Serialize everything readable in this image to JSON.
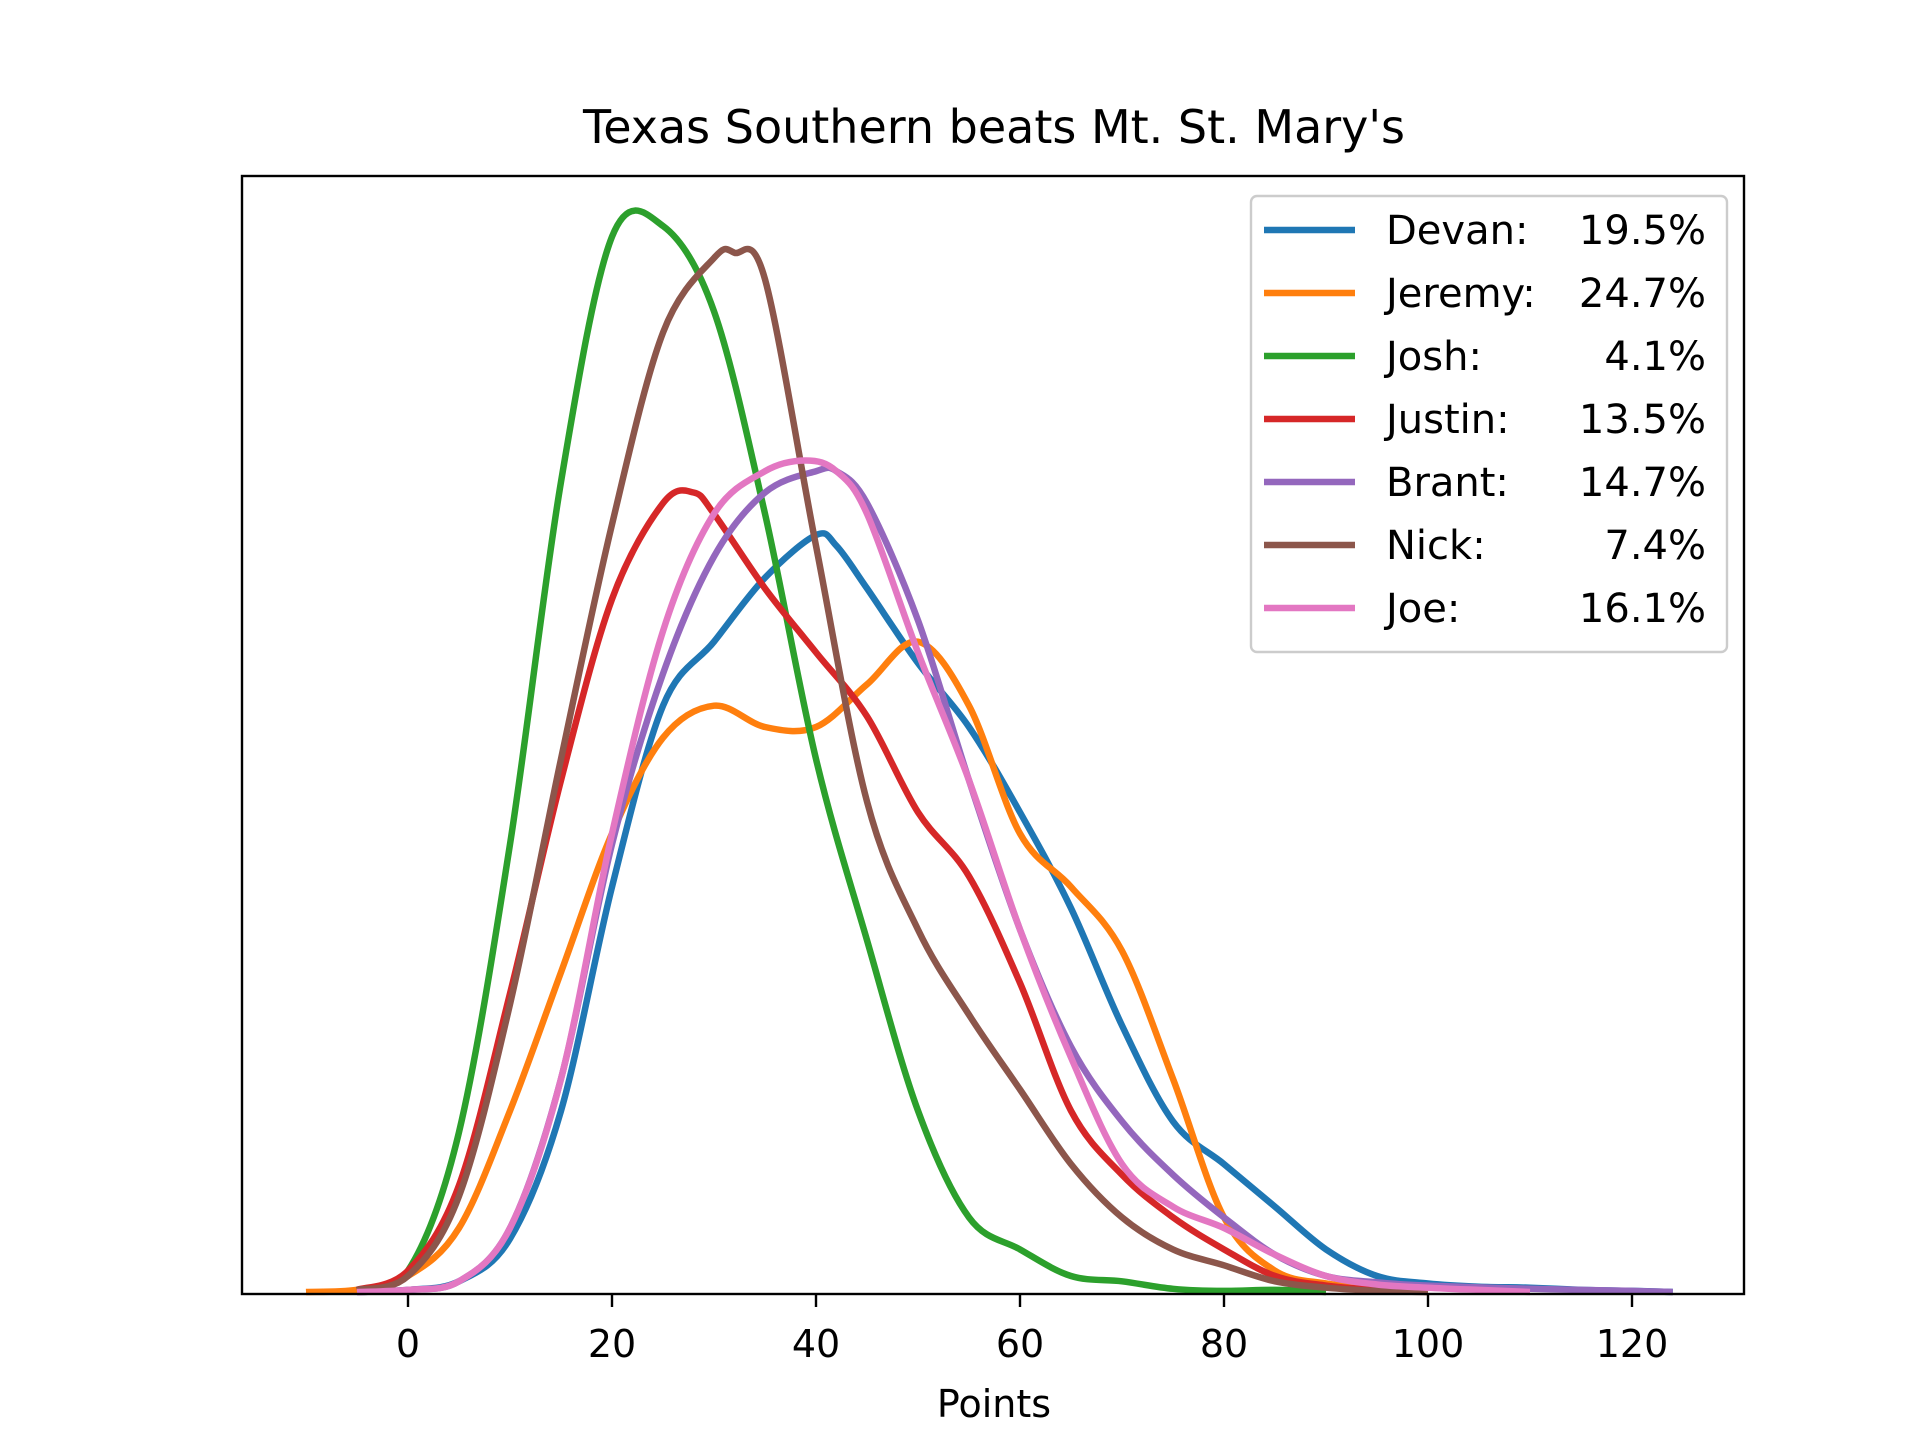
{
  "chart_data": {
    "type": "line",
    "title": "Texas Southern beats Mt. St. Mary's",
    "xlabel": "Points",
    "ylabel": "",
    "xlim": [
      -16.5,
      131
    ],
    "x_ticks": [
      0,
      20,
      40,
      60,
      80,
      100,
      120
    ],
    "y_ticks_shown": false,
    "grid": false,
    "legend_position": "top-right",
    "y_scale": "density (unlabeled, relative)",
    "series": [
      {
        "name": "Devan:",
        "pct": "19.5%",
        "color": "#1f77b4",
        "x": [
          -5,
          0,
          5,
          10,
          15,
          20,
          25,
          30,
          35,
          40,
          42,
          45,
          50,
          55,
          60,
          65,
          70,
          75,
          80,
          85,
          90,
          95,
          100,
          105,
          110,
          115,
          120,
          124
        ],
        "y": [
          0,
          0.002,
          0.01,
          0.05,
          0.17,
          0.38,
          0.55,
          0.61,
          0.67,
          0.71,
          0.7,
          0.66,
          0.59,
          0.53,
          0.45,
          0.36,
          0.25,
          0.16,
          0.12,
          0.08,
          0.04,
          0.015,
          0.008,
          0.005,
          0.004,
          0.002,
          0.001,
          0
        ]
      },
      {
        "name": "Jeremy:",
        "pct": "24.7%",
        "color": "#ff7f0e",
        "x": [
          -10,
          -5,
          0,
          5,
          10,
          15,
          20,
          25,
          30,
          35,
          40,
          45,
          50,
          55,
          60,
          65,
          70,
          75,
          80,
          85,
          90,
          95,
          100
        ],
        "y": [
          0,
          0.002,
          0.015,
          0.06,
          0.17,
          0.3,
          0.43,
          0.52,
          0.55,
          0.53,
          0.53,
          0.57,
          0.61,
          0.55,
          0.43,
          0.38,
          0.32,
          0.2,
          0.07,
          0.02,
          0.008,
          0.003,
          0
        ]
      },
      {
        "name": "Josh:",
        "pct": "4.1%",
        "color": "#2ca02c",
        "x": [
          -5,
          0,
          5,
          10,
          15,
          20,
          25,
          30,
          35,
          40,
          45,
          50,
          55,
          60,
          65,
          70,
          75,
          80,
          85,
          90
        ],
        "y": [
          0.002,
          0.02,
          0.15,
          0.42,
          0.76,
          0.99,
          1.0,
          0.92,
          0.73,
          0.5,
          0.33,
          0.17,
          0.07,
          0.04,
          0.015,
          0.01,
          0.003,
          0.001,
          0.002,
          0
        ]
      },
      {
        "name": "Justin:",
        "pct": "13.5%",
        "color": "#d62728",
        "x": [
          -5,
          0,
          5,
          10,
          15,
          20,
          25,
          28,
          30,
          35,
          40,
          45,
          50,
          55,
          60,
          65,
          70,
          75,
          80,
          85,
          90,
          95,
          100
        ],
        "y": [
          0.002,
          0.02,
          0.1,
          0.28,
          0.48,
          0.65,
          0.74,
          0.75,
          0.73,
          0.66,
          0.6,
          0.54,
          0.45,
          0.39,
          0.29,
          0.17,
          0.11,
          0.07,
          0.04,
          0.015,
          0.006,
          0.002,
          0
        ]
      },
      {
        "name": "Brant:",
        "pct": "14.7%",
        "color": "#9467bd",
        "x": [
          -5,
          0,
          5,
          10,
          15,
          20,
          25,
          30,
          35,
          40,
          42,
          45,
          50,
          55,
          60,
          65,
          70,
          75,
          80,
          85,
          90,
          95,
          100,
          110,
          120,
          124
        ],
        "y": [
          0,
          0.002,
          0.01,
          0.06,
          0.2,
          0.42,
          0.58,
          0.69,
          0.75,
          0.77,
          0.77,
          0.74,
          0.63,
          0.48,
          0.34,
          0.23,
          0.16,
          0.11,
          0.07,
          0.035,
          0.015,
          0.009,
          0.006,
          0.003,
          0.001,
          0
        ]
      },
      {
        "name": "Nick:",
        "pct": "7.4%",
        "color": "#8c564b",
        "x": [
          -5,
          0,
          5,
          10,
          15,
          20,
          25,
          30,
          32,
          35,
          40,
          45,
          50,
          55,
          60,
          65,
          70,
          75,
          80,
          85,
          90,
          95,
          100
        ],
        "y": [
          0.002,
          0.015,
          0.09,
          0.27,
          0.5,
          0.72,
          0.9,
          0.97,
          0.975,
          0.95,
          0.7,
          0.46,
          0.34,
          0.26,
          0.19,
          0.12,
          0.07,
          0.04,
          0.025,
          0.01,
          0.004,
          0.001,
          0
        ]
      },
      {
        "name": "Joe:",
        "pct": "16.1%",
        "color": "#e377c2",
        "x": [
          -5,
          0,
          5,
          10,
          15,
          20,
          25,
          30,
          35,
          39,
          42,
          45,
          50,
          55,
          60,
          65,
          70,
          75,
          80,
          85,
          90,
          95,
          100,
          105,
          110
        ],
        "y": [
          0,
          0.002,
          0.01,
          0.06,
          0.2,
          0.43,
          0.62,
          0.73,
          0.77,
          0.78,
          0.77,
          0.73,
          0.6,
          0.48,
          0.34,
          0.22,
          0.12,
          0.08,
          0.06,
          0.035,
          0.015,
          0.007,
          0.004,
          0.002,
          0
        ]
      }
    ]
  }
}
